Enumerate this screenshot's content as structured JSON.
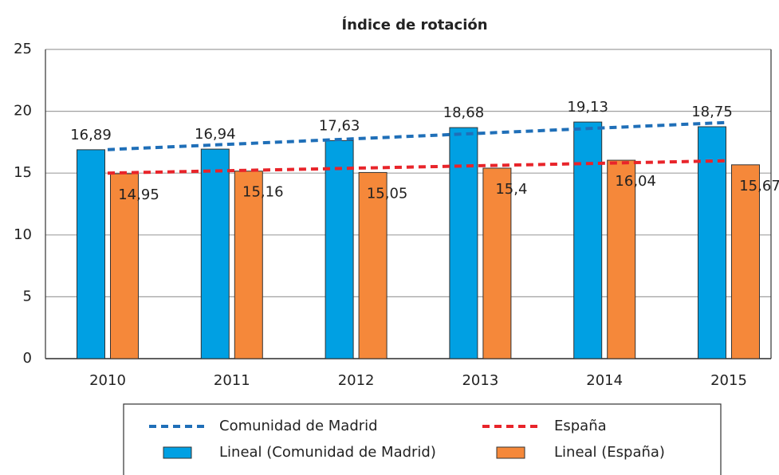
{
  "chart_data": {
    "type": "bar",
    "title": "Índice de rotación",
    "categories": [
      "2010",
      "2011",
      "2012",
      "2013",
      "2014",
      "2015"
    ],
    "series": [
      {
        "name": "Lineal (Comunidad de Madrid)",
        "color": "#00a0e3",
        "values": [
          16.89,
          16.94,
          17.63,
          18.68,
          19.13,
          18.75
        ],
        "value_labels": [
          "16,89",
          "16,94",
          "17,63",
          "18,68",
          "19,13",
          "18,75"
        ]
      },
      {
        "name": "Lineal (España)",
        "color": "#f5883a",
        "values": [
          14.95,
          15.16,
          15.05,
          15.4,
          16.04,
          15.67
        ],
        "value_labels": [
          "14,95",
          "15,16",
          "15,05",
          "15,4",
          "16,04",
          "15,67"
        ]
      }
    ],
    "trendlines": [
      {
        "name": "Comunidad de Madrid",
        "color": "#1f6fb8",
        "values": [
          16.9,
          19.1
        ]
      },
      {
        "name": "España",
        "color": "#e8242a",
        "values": [
          15.0,
          16.0
        ]
      }
    ],
    "ylim": [
      0,
      25
    ],
    "yticks": [
      0,
      5,
      10,
      15,
      20,
      25
    ],
    "grid": true
  }
}
